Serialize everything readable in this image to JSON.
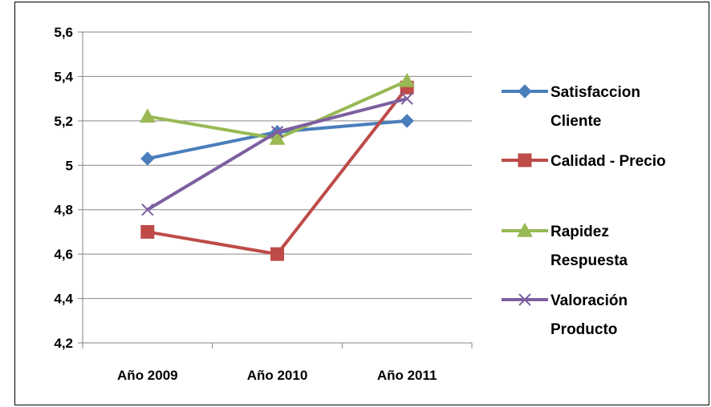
{
  "chart_data": {
    "type": "line",
    "categories": [
      "Año 2009",
      "Año 2010",
      "Año 2011"
    ],
    "ylim": [
      4.2,
      5.6
    ],
    "yticks": [
      4.2,
      4.4,
      4.6,
      4.8,
      5,
      5.2,
      5.4,
      5.6
    ],
    "ytick_labels": [
      "4,2",
      "4,4",
      "4,6",
      "4,8",
      "5",
      "5,2",
      "5,4",
      "5,6"
    ],
    "grid": true,
    "legend_position": "right",
    "series": [
      {
        "name": [
          "Satisfaccion",
          "Cliente"
        ],
        "values": [
          5.03,
          5.15,
          5.2
        ],
        "color": "#4a7ebb",
        "marker": "diamond"
      },
      {
        "name": [
          "Calidad - Precio"
        ],
        "values": [
          4.7,
          4.6,
          5.35
        ],
        "color": "#be4b48",
        "marker": "square"
      },
      {
        "name": [
          "Rapidez",
          "Respuesta"
        ],
        "values": [
          5.22,
          5.12,
          5.38
        ],
        "color": "#98b954",
        "marker": "triangle"
      },
      {
        "name": [
          "Valoración",
          "Producto"
        ],
        "values": [
          4.8,
          5.15,
          5.3
        ],
        "color": "#7d60a0",
        "marker": "x"
      }
    ]
  }
}
